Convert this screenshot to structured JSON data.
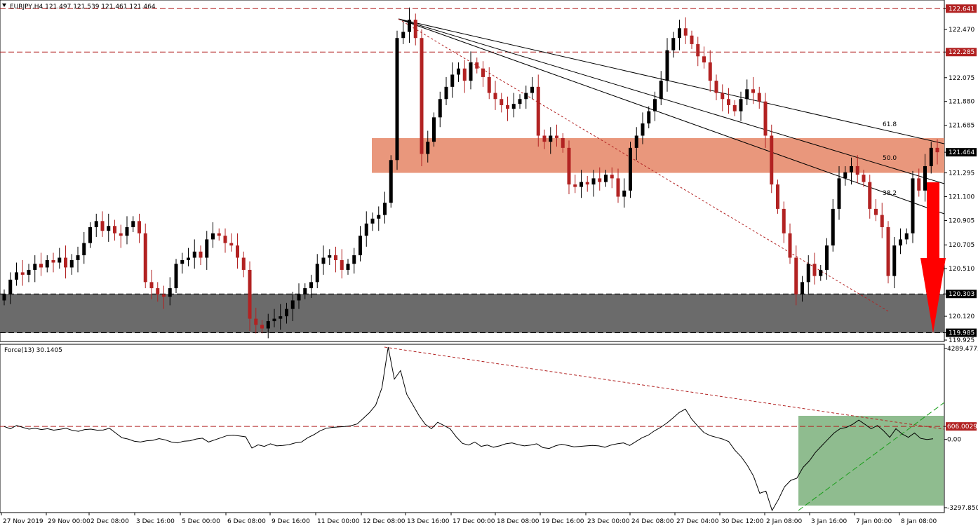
{
  "header": {
    "title": "EURJPY,H4  121.497 121.539 121.461 121.464"
  },
  "indicator": {
    "title": "Force(13) 30.1405"
  },
  "colors": {
    "bull": "#000000",
    "bear": "#b22222",
    "resistance_zone": "#e9977c",
    "support_zone": "#6b6b6b",
    "green_zone": "#8fbc8f",
    "level_line": "#b22222",
    "arrow": "#ff0000"
  },
  "chart_data": [
    {
      "type": "candlestick",
      "symbol": "EURJPY",
      "timeframe": "H4",
      "ylim": [
        119.925,
        122.7
      ],
      "y_ticks": [
        "122.641",
        "122.470",
        "122.285",
        "122.075",
        "121.880",
        "121.685",
        "121.464",
        "121.295",
        "121.100",
        "120.905",
        "120.705",
        "120.510",
        "120.303",
        "120.120",
        "119.985",
        "119.925"
      ],
      "x_ticks": [
        "27 Nov 2019",
        "29 Nov 00:00",
        "2 Dec 08:00",
        "3 Dec 16:00",
        "5 Dec 00:00",
        "6 Dec 08:00",
        "9 Dec 16:00",
        "11 Dec 00:00",
        "12 Dec 08:00",
        "13 Dec 16:00",
        "17 Dec 00:00",
        "18 Dec 08:00",
        "19 Dec 16:00",
        "23 Dec 00:00",
        "24 Dec 08:00",
        "27 Dec 04:00",
        "30 Dec 12:00",
        "2 Jan 08:00",
        "3 Jan 16:00",
        "7 Jan 00:00",
        "8 Jan 08:00"
      ],
      "levels": [
        122.641,
        122.285,
        120.303,
        119.985
      ],
      "highlighted_levels": [
        "122.641",
        "122.285",
        "120.303",
        "119.985"
      ],
      "current_price_label": "121.464",
      "resistance_zone": [
        121.295,
        121.58
      ],
      "support_zone": [
        119.985,
        120.303
      ],
      "fib_labels": [
        "61.8",
        "50.0",
        "38.2"
      ],
      "closes": [
        120.3,
        120.42,
        120.48,
        120.46,
        120.5,
        120.55,
        120.52,
        120.58,
        120.56,
        120.6,
        120.52,
        120.58,
        120.62,
        120.72,
        120.85,
        120.9,
        120.82,
        120.86,
        120.8,
        120.78,
        120.85,
        120.9,
        120.8,
        120.4,
        120.35,
        120.3,
        120.28,
        120.35,
        120.55,
        120.58,
        120.6,
        120.65,
        120.6,
        120.75,
        120.8,
        120.78,
        120.72,
        120.7,
        120.6,
        120.5,
        120.1,
        120.05,
        120.02,
        120.08,
        120.1,
        120.12,
        120.18,
        120.25,
        120.3,
        120.35,
        120.4,
        120.55,
        120.6,
        120.62,
        120.58,
        120.5,
        120.55,
        120.62,
        120.78,
        120.88,
        120.92,
        120.95,
        121.05,
        121.4,
        122.4,
        122.45,
        122.55,
        122.4,
        121.45,
        121.55,
        121.75,
        121.9,
        122.0,
        122.1,
        122.15,
        122.05,
        122.2,
        122.15,
        122.08,
        121.95,
        121.9,
        121.85,
        121.82,
        121.86,
        121.9,
        121.95,
        122.0,
        121.6,
        121.55,
        121.6,
        121.58,
        121.5,
        121.2,
        121.18,
        121.22,
        121.2,
        121.25,
        121.22,
        121.28,
        121.25,
        121.1,
        121.15,
        121.5,
        121.6,
        121.7,
        121.8,
        121.9,
        122.05,
        122.3,
        122.4,
        122.48,
        122.42,
        122.35,
        122.25,
        122.2,
        122.05,
        121.95,
        121.9,
        121.85,
        121.8,
        121.9,
        121.98,
        121.95,
        121.88,
        121.6,
        121.2,
        121.0,
        120.8,
        120.6,
        120.3,
        120.4,
        120.55,
        120.45,
        120.5,
        120.7,
        121.0,
        121.25,
        121.3,
        121.35,
        121.28,
        121.22,
        121.0,
        120.95,
        120.85,
        120.45,
        120.7,
        120.75,
        120.8,
        121.25,
        121.15,
        121.35,
        121.5,
        121.464
      ]
    },
    {
      "type": "line",
      "name": "Force(13)",
      "value": 30.1405,
      "ylim": [
        -3297.85,
        4289.4775
      ],
      "y_ticks": [
        "4289.4775",
        "606.0029",
        "0.00",
        "-3297.8500"
      ],
      "highlighted_value": "606.0029",
      "values": [
        600,
        500,
        650,
        560,
        480,
        520,
        460,
        500,
        430,
        470,
        520,
        420,
        380,
        460,
        480,
        430,
        440,
        520,
        300,
        80,
        20,
        -80,
        -120,
        -60,
        -40,
        40,
        -20,
        -120,
        -160,
        -80,
        -60,
        20,
        60,
        -120,
        -20,
        80,
        180,
        200,
        160,
        120,
        -400,
        -250,
        -320,
        -200,
        -300,
        -280,
        -240,
        -160,
        -120,
        80,
        220,
        400,
        520,
        560,
        580,
        600,
        640,
        720,
        980,
        1250,
        1600,
        2400,
        4289,
        2800,
        3200,
        2100,
        1600,
        1100,
        700,
        500,
        800,
        650,
        500,
        120,
        -180,
        -260,
        -120,
        -320,
        -260,
        -360,
        -300,
        -200,
        -160,
        -240,
        -300,
        -260,
        -200,
        -380,
        -420,
        -300,
        -220,
        -280,
        -340,
        -320,
        -300,
        -280,
        -300,
        -360,
        -260,
        -200,
        -160,
        -280,
        -100,
        80,
        200,
        400,
        560,
        760,
        1000,
        1250,
        1410,
        950,
        620,
        320,
        180,
        100,
        20,
        -100,
        -500,
        -800,
        -1200,
        -1700,
        -2500,
        -2400,
        -3297,
        -2800,
        -2200,
        -1900,
        -1800,
        -1300,
        -1000,
        -600,
        -300,
        0,
        300,
        500,
        560,
        700,
        900,
        700,
        500,
        650,
        400,
        100,
        500,
        250,
        100,
        300,
        50,
        0,
        30
      ]
    }
  ]
}
